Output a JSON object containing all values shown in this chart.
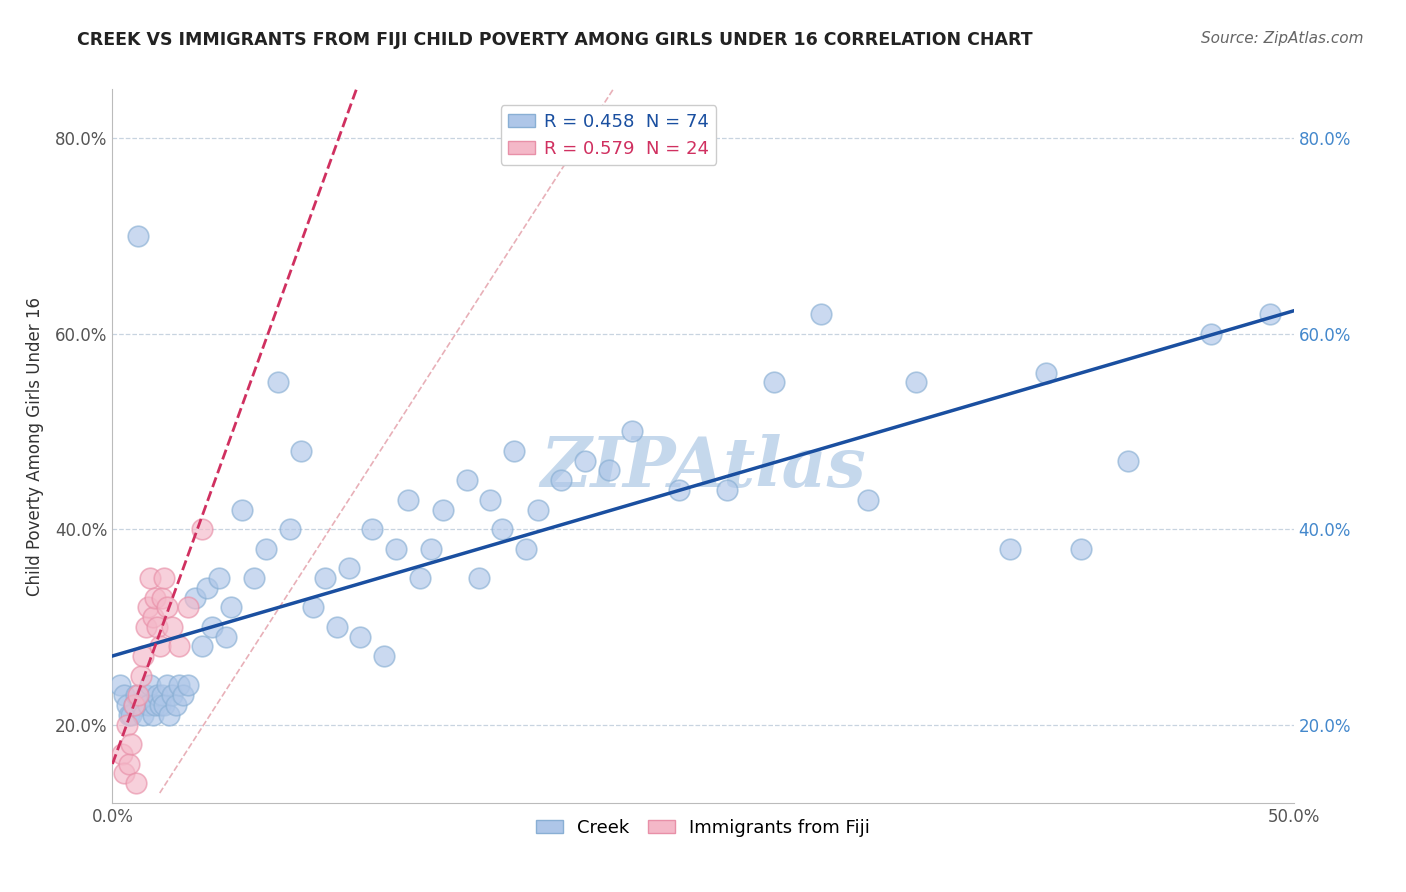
{
  "title": "CREEK VS IMMIGRANTS FROM FIJI CHILD POVERTY AMONG GIRLS UNDER 16 CORRELATION CHART",
  "source": "Source: ZipAtlas.com",
  "xlabel": "",
  "ylabel": "Child Poverty Among Girls Under 16",
  "xlim": [
    0.0,
    0.5
  ],
  "ylim": [
    0.12,
    0.85
  ],
  "x_ticks": [
    0.0,
    0.1,
    0.2,
    0.3,
    0.4,
    0.5
  ],
  "x_tick_labels": [
    "0.0%",
    "",
    "",
    "",
    "",
    "50.0%"
  ],
  "y_ticks": [
    0.2,
    0.4,
    0.6,
    0.8
  ],
  "y_tick_labels": [
    "20.0%",
    "40.0%",
    "60.0%",
    "80.0%"
  ],
  "creek_R": 0.458,
  "creek_N": 74,
  "fiji_R": 0.579,
  "fiji_N": 24,
  "creek_color": "#aec6e8",
  "creek_edge_color": "#89afd4",
  "fiji_color": "#f4b8c8",
  "fiji_edge_color": "#e890a8",
  "creek_line_color": "#1a4fa0",
  "fiji_line_color": "#d03060",
  "diag_line_color": "#e8b0b8",
  "watermark_color": "#c5d8ec",
  "background_color": "#ffffff",
  "right_tick_color": "#4488cc",
  "creek_x": [
    0.003,
    0.005,
    0.006,
    0.007,
    0.008,
    0.009,
    0.01,
    0.011,
    0.012,
    0.013,
    0.014,
    0.015,
    0.016,
    0.017,
    0.018,
    0.019,
    0.02,
    0.021,
    0.022,
    0.023,
    0.024,
    0.025,
    0.027,
    0.028,
    0.03,
    0.032,
    0.035,
    0.038,
    0.04,
    0.042,
    0.045,
    0.048,
    0.05,
    0.055,
    0.06,
    0.065,
    0.07,
    0.075,
    0.08,
    0.085,
    0.09,
    0.095,
    0.1,
    0.105,
    0.11,
    0.115,
    0.12,
    0.125,
    0.13,
    0.135,
    0.14,
    0.15,
    0.155,
    0.16,
    0.165,
    0.17,
    0.175,
    0.18,
    0.19,
    0.2,
    0.21,
    0.22,
    0.24,
    0.26,
    0.28,
    0.3,
    0.32,
    0.34,
    0.38,
    0.395,
    0.41,
    0.43,
    0.465,
    0.49
  ],
  "creek_y": [
    0.24,
    0.23,
    0.22,
    0.21,
    0.21,
    0.22,
    0.23,
    0.7,
    0.22,
    0.21,
    0.23,
    0.22,
    0.24,
    0.21,
    0.22,
    0.23,
    0.22,
    0.23,
    0.22,
    0.24,
    0.21,
    0.23,
    0.22,
    0.24,
    0.23,
    0.24,
    0.33,
    0.28,
    0.34,
    0.3,
    0.35,
    0.29,
    0.32,
    0.42,
    0.35,
    0.38,
    0.55,
    0.4,
    0.48,
    0.32,
    0.35,
    0.3,
    0.36,
    0.29,
    0.4,
    0.27,
    0.38,
    0.43,
    0.35,
    0.38,
    0.42,
    0.45,
    0.35,
    0.43,
    0.4,
    0.48,
    0.38,
    0.42,
    0.45,
    0.47,
    0.46,
    0.5,
    0.44,
    0.44,
    0.55,
    0.62,
    0.43,
    0.55,
    0.38,
    0.56,
    0.38,
    0.47,
    0.6,
    0.62
  ],
  "fiji_x": [
    0.004,
    0.005,
    0.006,
    0.007,
    0.008,
    0.009,
    0.01,
    0.011,
    0.012,
    0.013,
    0.014,
    0.015,
    0.016,
    0.017,
    0.018,
    0.019,
    0.02,
    0.021,
    0.022,
    0.023,
    0.025,
    0.028,
    0.032,
    0.038
  ],
  "fiji_y": [
    0.17,
    0.15,
    0.2,
    0.16,
    0.18,
    0.22,
    0.14,
    0.23,
    0.25,
    0.27,
    0.3,
    0.32,
    0.35,
    0.31,
    0.33,
    0.3,
    0.28,
    0.33,
    0.35,
    0.32,
    0.3,
    0.28,
    0.32,
    0.4
  ]
}
